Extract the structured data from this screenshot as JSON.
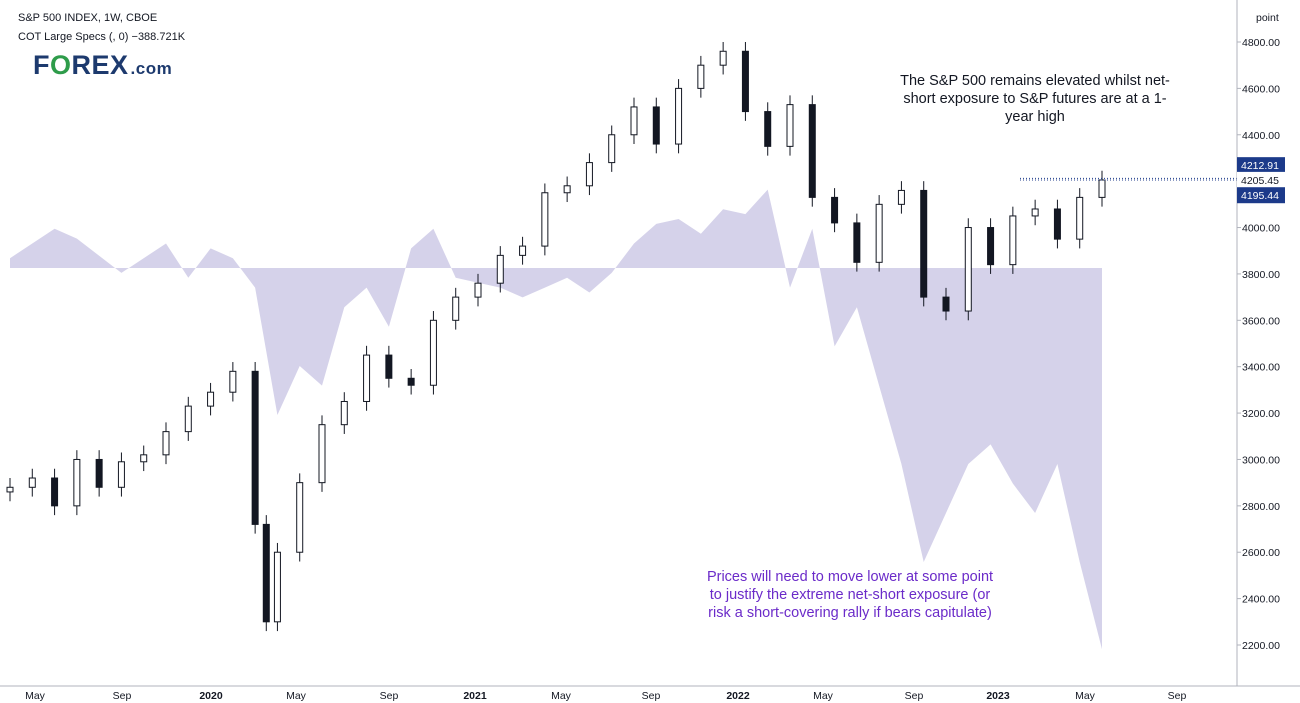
{
  "header": {
    "title": "S&P 500 INDEX, 1W, CBOE",
    "indicator_label": "COT Large Specs (, 0)",
    "indicator_value": "−388.721K"
  },
  "logo": {
    "part1": "F",
    "part_o": "O",
    "part2": "REX",
    "suffix": ".com"
  },
  "annotations": {
    "top_right": "The S&P 500 remains elevated whilst net-short exposure to S&P futures are at a 1-year high",
    "bottom": "Prices will need to move lower at some point to justify the extreme net-short exposure (or risk a short-covering rally if bears capitulate)"
  },
  "colors": {
    "cot_fill": "#d5d2ea",
    "candle": "#131722",
    "price_badge": "#1c3a8a",
    "axis_line": "#b0b3bc"
  },
  "chart_data": {
    "type": "line",
    "x_axis": {
      "tick_labels": [
        "May",
        "Sep",
        "2020",
        "May",
        "Sep",
        "2021",
        "May",
        "Sep",
        "2022",
        "May",
        "Sep",
        "2023",
        "May",
        "Sep"
      ],
      "bold_ticks": [
        "2020",
        "2021",
        "2022",
        "2023"
      ]
    },
    "y_axis": {
      "unit_label": "point",
      "tick_labels": [
        "4800.00",
        "4600.00",
        "4400.00",
        "4200.00",
        "4000.00",
        "3800.00",
        "3600.00",
        "3400.00",
        "3200.00",
        "3000.00",
        "2800.00",
        "2600.00",
        "2400.00",
        "2200.00"
      ],
      "ylim": [
        2120,
        4900
      ]
    },
    "price_labels": {
      "high": "4212.91",
      "last": "4205.45",
      "low": "4195.44"
    },
    "series": [
      {
        "name": "S&P 500 INDEX",
        "kind": "weekly closes (approx.)",
        "x": [
          "2019-04",
          "2019-05",
          "2019-06",
          "2019-07",
          "2019-08",
          "2019-09",
          "2019-10",
          "2019-11",
          "2019-12",
          "2020-01",
          "2020-02",
          "2020-03a",
          "2020-03b",
          "2020-04",
          "2020-05",
          "2020-06",
          "2020-07",
          "2020-08",
          "2020-09",
          "2020-10",
          "2020-11",
          "2020-12",
          "2021-01",
          "2021-02",
          "2021-03",
          "2021-04",
          "2021-05",
          "2021-06",
          "2021-07",
          "2021-08",
          "2021-09",
          "2021-10",
          "2021-11",
          "2021-12",
          "2022-01",
          "2022-02",
          "2022-03",
          "2022-04",
          "2022-05",
          "2022-06",
          "2022-07",
          "2022-08",
          "2022-09",
          "2022-10",
          "2022-11",
          "2022-12",
          "2023-01",
          "2023-02",
          "2023-03",
          "2023-04",
          "2023-05"
        ],
        "values": [
          2880,
          2920,
          2800,
          3000,
          2880,
          2990,
          3020,
          3120,
          3230,
          3290,
          3380,
          2720,
          2300,
          2600,
          2900,
          3150,
          3250,
          3450,
          3350,
          3320,
          3600,
          3700,
          3760,
          3880,
          3920,
          4150,
          4180,
          4280,
          4400,
          4520,
          4360,
          4600,
          4700,
          4760,
          4500,
          4350,
          4530,
          4130,
          4020,
          3850,
          4100,
          4160,
          3700,
          3640,
          4000,
          3840,
          4050,
          4080,
          3950,
          4130,
          4205
        ]
      },
      {
        "name": "COT Large Specs",
        "unit": "K contracts (approx.)",
        "x": [
          "2019-04",
          "2019-06",
          "2019-07",
          "2019-09",
          "2019-11",
          "2019-12",
          "2020-01",
          "2020-02",
          "2020-03",
          "2020-04",
          "2020-05",
          "2020-06",
          "2020-07",
          "2020-08",
          "2020-09",
          "2020-10",
          "2020-11",
          "2020-12",
          "2021-01",
          "2021-02",
          "2021-03",
          "2021-04",
          "2021-05",
          "2021-06",
          "2021-07",
          "2021-08",
          "2021-09",
          "2021-10",
          "2021-11",
          "2021-12",
          "2022-01",
          "2022-02",
          "2022-03",
          "2022-04",
          "2022-05",
          "2022-06",
          "2022-07",
          "2022-08",
          "2022-09",
          "2022-10",
          "2022-11",
          "2022-12",
          "2023-01",
          "2023-02",
          "2023-03",
          "2023-04",
          "2023-05"
        ],
        "values": [
          10,
          40,
          30,
          -5,
          25,
          -10,
          20,
          10,
          -20,
          -150,
          -100,
          -120,
          -40,
          -20,
          -60,
          20,
          40,
          -10,
          -15,
          -20,
          -30,
          -20,
          -10,
          -25,
          -5,
          25,
          45,
          50,
          35,
          60,
          55,
          80,
          -20,
          40,
          -80,
          -40,
          -120,
          -200,
          -300,
          -250,
          -200,
          -180,
          -220,
          -250,
          -200,
          -300,
          -389
        ]
      }
    ]
  }
}
